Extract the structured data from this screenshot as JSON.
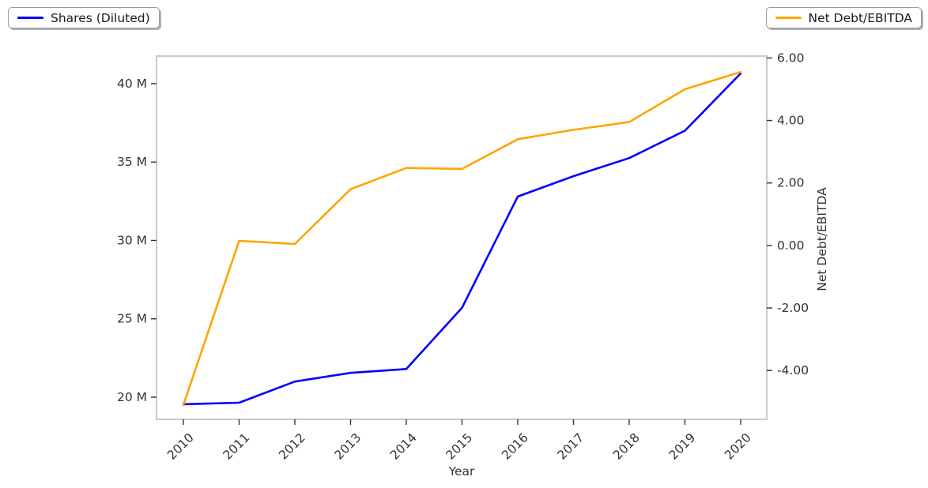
{
  "chart_data": {
    "type": "line",
    "title": "",
    "xlabel": "Year",
    "x_categories": [
      "2010",
      "2011",
      "2012",
      "2013",
      "2014",
      "2015",
      "2016",
      "2017",
      "2018",
      "2019",
      "2020"
    ],
    "series": [
      {
        "name": "Shares (Diluted)",
        "axis": "left",
        "color": "#0000ff",
        "values": [
          19.55,
          19.65,
          21.0,
          21.55,
          21.8,
          25.7,
          32.8,
          34.1,
          35.25,
          37.0,
          40.65
        ]
      },
      {
        "name": "Net Debt/EBITDA",
        "axis": "right",
        "color": "#ffa500",
        "values": [
          -5.1,
          0.15,
          0.05,
          1.8,
          2.48,
          2.45,
          3.4,
          3.7,
          3.95,
          5.0,
          5.55
        ]
      }
    ],
    "left_axis": {
      "tick_labels": [
        "20 M",
        "25 M",
        "30 M",
        "35 M",
        "40 M"
      ],
      "tick_values": [
        20,
        25,
        30,
        35,
        40
      ],
      "range": [
        18.59,
        41.76
      ]
    },
    "right_axis": {
      "label": "Net Debt/EBITDA",
      "tick_labels": [
        "-4.00",
        "-2.00",
        "0.00",
        "2.00",
        "4.00",
        "6.00"
      ],
      "tick_values": [
        -4,
        -2,
        0,
        2,
        4,
        6
      ],
      "range": [
        -5.56,
        6.06
      ]
    },
    "legend": [
      "Shares (Diluted)",
      "Net Debt/EBITDA"
    ],
    "grid": false,
    "styles": {
      "spine_color": "#c9c9c9",
      "tick_color": "#333333",
      "tick_text_color": "#333333"
    }
  }
}
